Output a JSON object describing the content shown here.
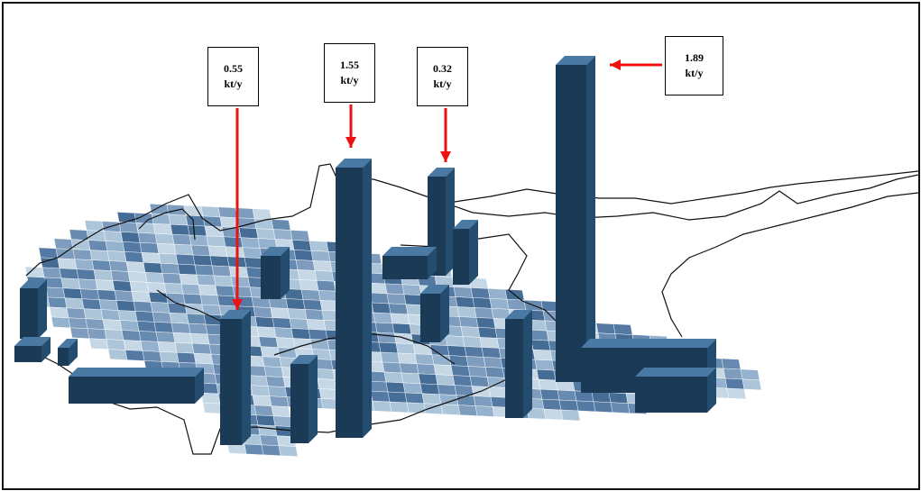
{
  "callouts": [
    {
      "value": "0.55",
      "unit": "kt/y"
    },
    {
      "value": "1.55",
      "unit": "kt/y"
    },
    {
      "value": "0.32",
      "unit": "kt/y"
    },
    {
      "value": "1.89",
      "unit": "kt/y"
    }
  ],
  "colors": {
    "bar_front": "#1b3a55",
    "bar_top": "#4a7aa3",
    "arrow": "#ee1111",
    "outline": "#111111"
  }
}
